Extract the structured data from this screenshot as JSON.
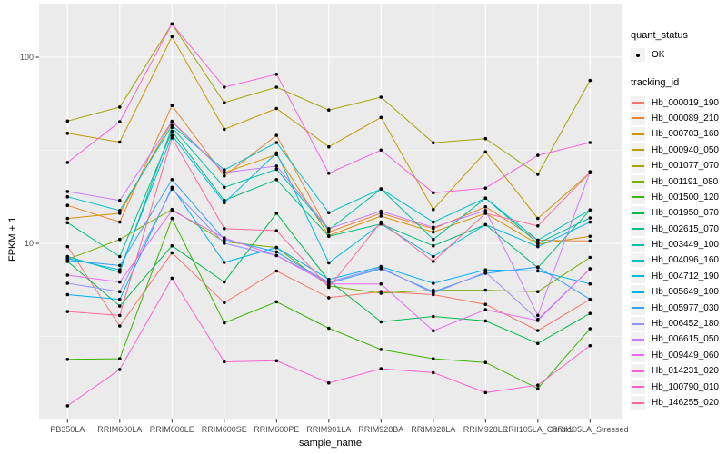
{
  "figure": {
    "xlabel": "sample_name",
    "ylabel": "FPKM + 1",
    "legend": {
      "quant_title": "quant_status",
      "quant_items": [
        {
          "label": "OK"
        }
      ],
      "tracking_title": "tracking_id"
    },
    "y_ticks": [
      {
        "label": "100",
        "value": 100
      },
      {
        "label": "10",
        "value": 10
      }
    ],
    "colors": {
      "panel_bg": "#EBEBEB",
      "grid": "#FFFFFF",
      "legend_key_bg": "#F2F2F2",
      "tick_text": "#4D4D4D",
      "tick_mark": "#333333",
      "point": "#000000"
    }
  },
  "chart_data": {
    "type": "line",
    "title": "",
    "xlabel": "sample_name",
    "ylabel": "FPKM + 1",
    "y_scale": "log10",
    "ylim": [
      1.15,
      195
    ],
    "y_major_breaks": [
      10,
      100
    ],
    "y_minor_breaks": [
      3.162,
      31.62
    ],
    "grid": true,
    "legend_position": "right",
    "point_marker": "black dot (quant_status OK)",
    "categories": [
      "PB350LA",
      "RRIM600LA",
      "RRIM600LE",
      "RRIM600SE",
      "RRIM600PE",
      "RRIM901LA",
      "RRIM928BA",
      "RRIM928LA",
      "RRIM928LE",
      "RRII105LA_Control",
      "RRII105LA_Stressed"
    ],
    "series": [
      {
        "name": "Hb_000019_190",
        "color": "#F8766D",
        "values": [
          9.6,
          3.6,
          8.9,
          4.8,
          7.1,
          5.1,
          5.5,
          5.3,
          4.7,
          3.4,
          5.0
        ]
      },
      {
        "name": "Hb_000089_210",
        "color": "#EA8331",
        "values": [
          16,
          13,
          55,
          23,
          38,
          11.5,
          14.5,
          12,
          15.7,
          10.4,
          10.3
        ]
      },
      {
        "name": "Hb_000703_160",
        "color": "#D89000",
        "values": [
          13.6,
          14.5,
          45,
          24,
          30,
          11,
          14,
          11.5,
          14.5,
          9.9,
          10.9
        ]
      },
      {
        "name": "Hb_000940_050",
        "color": "#C09B00",
        "values": [
          39,
          35,
          129,
          41,
          53,
          33,
          47.5,
          15.2,
          31,
          13.6,
          24
        ]
      },
      {
        "name": "Hb_001077_070",
        "color": "#A3A500",
        "values": [
          45.4,
          54,
          151,
          57,
          69,
          52,
          61,
          34.7,
          36.5,
          23.5,
          75
        ]
      },
      {
        "name": "Hb_001191_080",
        "color": "#7CAE00",
        "values": [
          8.2,
          10.5,
          15.2,
          10.2,
          9.5,
          5.9,
          5.4,
          5.6,
          5.6,
          5.5,
          8.4
        ]
      },
      {
        "name": "Hb_001500_120",
        "color": "#39B600",
        "values": [
          2.38,
          2.4,
          13.6,
          3.74,
          4.85,
          3.5,
          2.69,
          2.4,
          2.29,
          1.66,
          3.48
        ]
      },
      {
        "name": "Hb_001950_070",
        "color": "#00BB4E",
        "values": [
          8.0,
          4.6,
          9.7,
          6.2,
          14.5,
          6.3,
          3.79,
          4.05,
          3.83,
          2.9,
          4.2
        ]
      },
      {
        "name": "Hb_002615_070",
        "color": "#00BF7D",
        "values": [
          12.9,
          8.5,
          40,
          17,
          22,
          10.9,
          12.7,
          9.7,
          12.6,
          7.4,
          15.1
        ]
      },
      {
        "name": "Hb_003449_100",
        "color": "#00C1A3",
        "values": [
          8.5,
          7.0,
          42,
          20,
          25,
          11.8,
          19.6,
          10.5,
          17.5,
          10.0,
          13.7
        ]
      },
      {
        "name": "Hb_004096_160",
        "color": "#00BFC4",
        "values": [
          17.8,
          15,
          43,
          24.8,
          34.8,
          14.6,
          19.6,
          13,
          17.5,
          10.4,
          15.1
        ]
      },
      {
        "name": "Hb_004712_190",
        "color": "#00BAE0",
        "values": [
          8.3,
          7.2,
          38,
          16.5,
          30.6,
          7.86,
          12.7,
          8.5,
          12.6,
          9.6,
          13
        ]
      },
      {
        "name": "Hb_005649_100",
        "color": "#00B0F6",
        "values": [
          5.3,
          5.0,
          20,
          7.9,
          9.5,
          6.4,
          7.5,
          6.1,
          7.2,
          7.1,
          6.05
        ]
      },
      {
        "name": "Hb_005977_030",
        "color": "#35A2FF",
        "values": [
          8.1,
          7.6,
          22,
          10.5,
          9.0,
          6.1,
          7.3,
          5.5,
          6.9,
          7.45,
          5.0
        ]
      },
      {
        "name": "Hb_006452_180",
        "color": "#9590FF",
        "values": [
          6.1,
          5.5,
          19.6,
          10.0,
          8.6,
          6.2,
          7.4,
          5.4,
          7.0,
          3.9,
          7.3
        ]
      },
      {
        "name": "Hb_006615_050",
        "color": "#C77CFF",
        "values": [
          19,
          17,
          45.3,
          24,
          26,
          12,
          14.9,
          12.2,
          15,
          4.1,
          24.3
        ]
      },
      {
        "name": "Hb_009449_060",
        "color": "#E76BF3",
        "values": [
          6.75,
          6.2,
          15,
          10.7,
          8.6,
          6.05,
          6.05,
          3.39,
          4.4,
          3.85,
          7.3
        ]
      },
      {
        "name": "Hb_014231_020",
        "color": "#FA62DB",
        "values": [
          27.2,
          45,
          151,
          69,
          81,
          23.8,
          31.7,
          18.7,
          19.8,
          29.7,
          34.8
        ]
      },
      {
        "name": "Hb_100790_010",
        "color": "#FF61CC",
        "values": [
          1.34,
          2.1,
          6.5,
          2.31,
          2.34,
          1.78,
          2.12,
          2.02,
          1.58,
          1.73,
          2.82
        ]
      },
      {
        "name": "Hb_146255_020",
        "color": "#FF6A98",
        "values": [
          4.3,
          4.1,
          36.9,
          12,
          11.7,
          5.8,
          13,
          8.0,
          14.5,
          12.4,
          24
        ]
      }
    ]
  }
}
